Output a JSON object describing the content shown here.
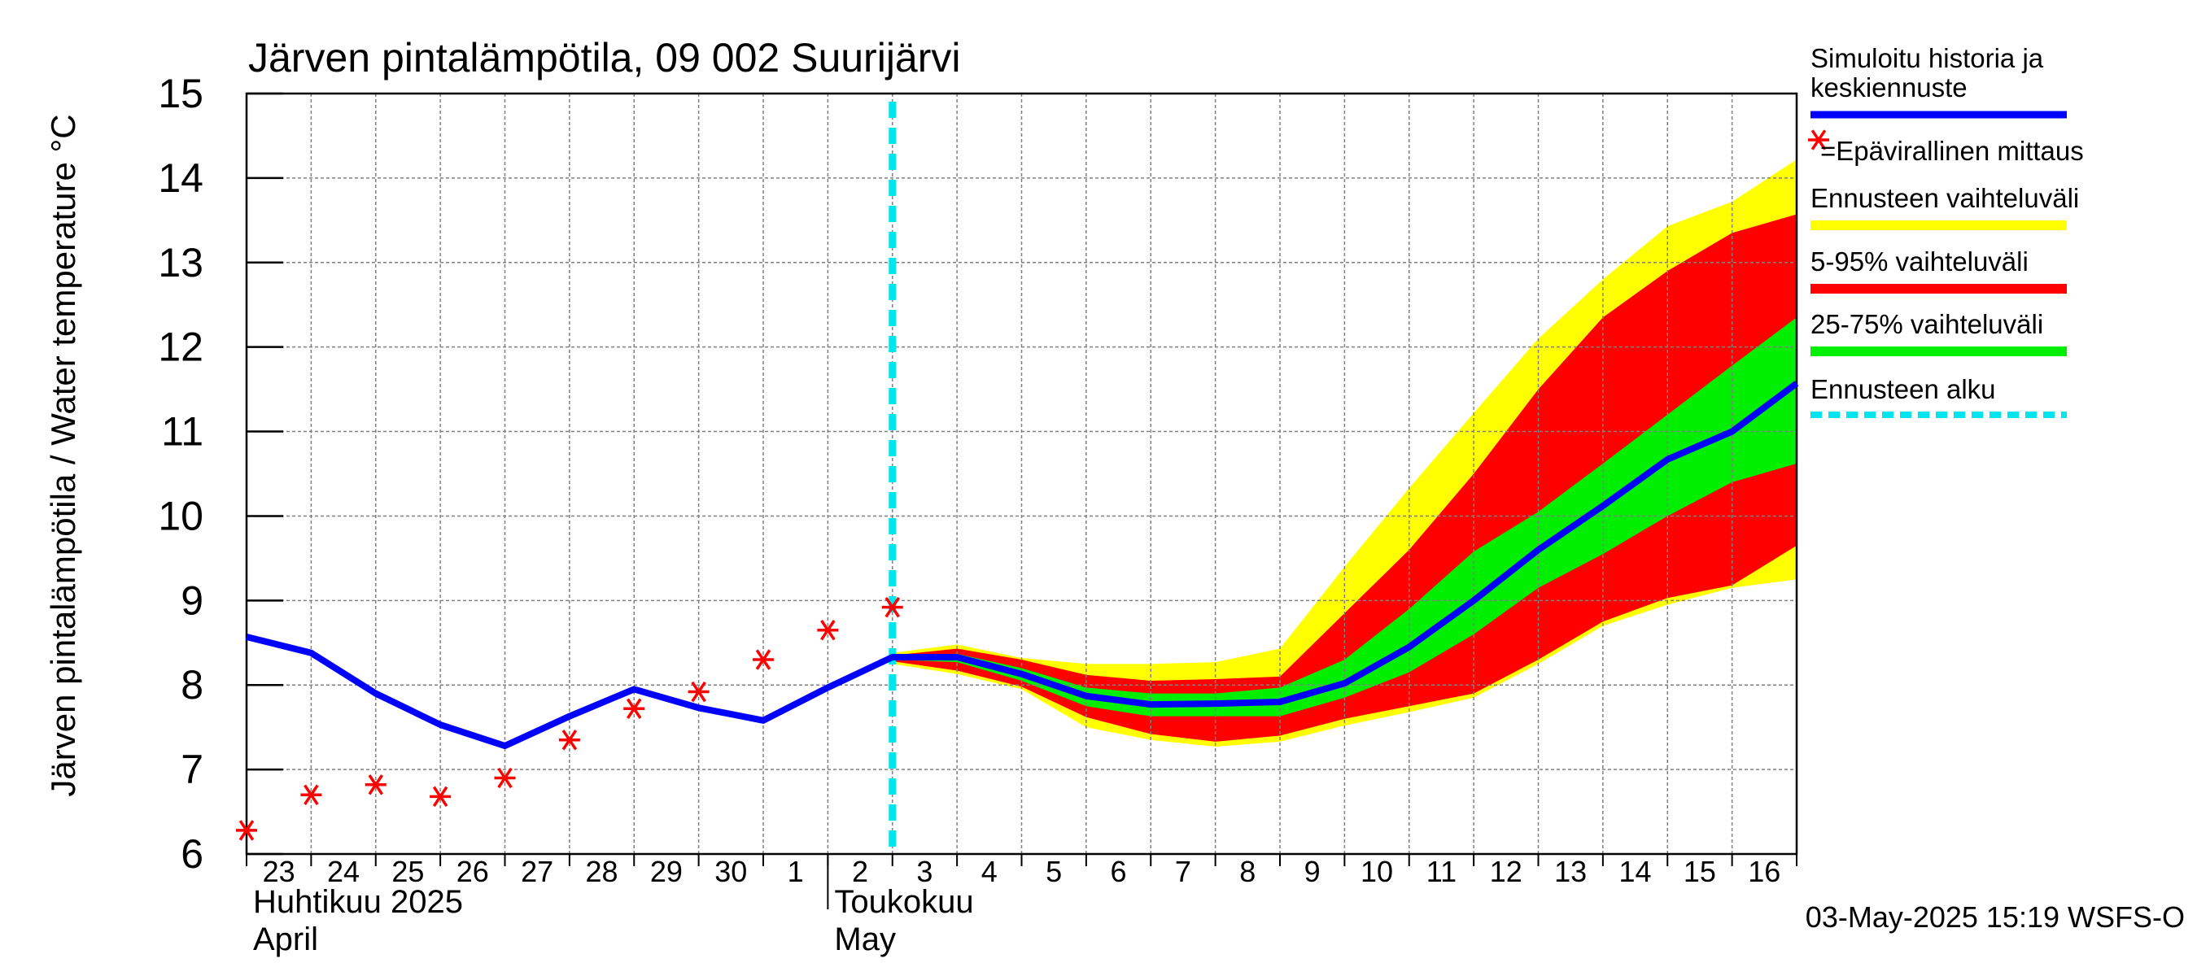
{
  "chart_data": {
    "type": "line",
    "title": "Järven pintalämpötila, 09 002 Suurijärvi",
    "ylabel": "Järven pintalämpötila / Water temperature °C",
    "ylim": [
      6,
      15
    ],
    "yticks": [
      6,
      7,
      8,
      9,
      10,
      11,
      12,
      13,
      14,
      15
    ],
    "xlim": [
      0,
      24
    ],
    "day_labels": [
      "23",
      "24",
      "25",
      "26",
      "27",
      "28",
      "29",
      "30",
      "1",
      "2",
      "3",
      "4",
      "5",
      "6",
      "7",
      "8",
      "9",
      "10",
      "11",
      "12",
      "13",
      "14",
      "15",
      "16"
    ],
    "month_labels": [
      {
        "fi": "Huhtikuu  2025",
        "en": "April",
        "x": 0
      },
      {
        "fi": "Toukokuu",
        "en": "May",
        "x": 9
      }
    ],
    "forecast_start": 10,
    "grid": true,
    "legend_position": "right",
    "colors": {
      "history": "#0000ff",
      "observation": "#ff0000",
      "band_full": "#ffff00",
      "band_5_95": "#ff0000",
      "band_25_75": "#00ee00",
      "forecast_start": "#00e5ee",
      "grid": "#808080"
    },
    "legend": [
      {
        "label": "Simuloitu historia ja\nkeskiennuste",
        "kind": "line",
        "color": "#0000ff"
      },
      {
        "label": "=Epävirallinen mittaus",
        "kind": "marker",
        "color": "#ff0000"
      },
      {
        "label": "Ennusteen vaihteluväli",
        "kind": "band",
        "color": "#ffff00"
      },
      {
        "label": "5-95% vaihteluväli",
        "kind": "band",
        "color": "#ff0000"
      },
      {
        "label": "25-75% vaihteluväli",
        "kind": "band",
        "color": "#00ee00"
      },
      {
        "label": "Ennusteen alku",
        "kind": "dash",
        "color": "#00e5ee"
      }
    ],
    "series": [
      {
        "name": "Simuloitu historia ja keskiennuste",
        "x": [
          0,
          1,
          2,
          3,
          4,
          5,
          6,
          7,
          8,
          9,
          10,
          11,
          12,
          13,
          14,
          15,
          16,
          17,
          18,
          19,
          20,
          21,
          22,
          23,
          24
        ],
        "y": [
          8.57,
          8.38,
          7.9,
          7.53,
          7.28,
          7.63,
          7.95,
          7.73,
          7.58,
          7.97,
          8.33,
          8.33,
          8.13,
          7.87,
          7.77,
          7.78,
          7.8,
          8.02,
          8.45,
          9.0,
          9.6,
          10.12,
          10.67,
          11.0,
          11.57
        ]
      },
      {
        "name": "Epävirallinen mittaus",
        "x": [
          0,
          1,
          2,
          3,
          4,
          5,
          6,
          7,
          8,
          9,
          10
        ],
        "y": [
          6.28,
          6.7,
          6.82,
          6.68,
          6.9,
          7.35,
          7.72,
          7.92,
          8.3,
          8.65,
          8.92
        ]
      }
    ],
    "bands": [
      {
        "name": "Ennusteen vaihteluväli",
        "x": [
          10,
          11,
          12,
          13,
          14,
          15,
          16,
          17,
          18,
          19,
          20,
          21,
          22,
          23,
          24
        ],
        "upper": [
          8.38,
          8.48,
          8.32,
          8.25,
          8.25,
          8.27,
          8.43,
          9.4,
          10.33,
          11.22,
          12.1,
          12.8,
          13.43,
          13.72,
          14.22
        ],
        "lower": [
          8.25,
          8.13,
          7.95,
          7.5,
          7.35,
          7.27,
          7.33,
          7.52,
          7.68,
          7.85,
          8.25,
          8.7,
          8.95,
          9.15,
          9.25
        ]
      },
      {
        "name": "5-95% vaihteluväli",
        "x": [
          10,
          11,
          12,
          13,
          14,
          15,
          16,
          17,
          18,
          19,
          20,
          21,
          22,
          23,
          24
        ],
        "upper": [
          8.35,
          8.43,
          8.3,
          8.12,
          8.05,
          8.07,
          8.1,
          8.85,
          9.6,
          10.5,
          11.5,
          12.35,
          12.9,
          13.35,
          13.57
        ],
        "lower": [
          8.28,
          8.17,
          7.98,
          7.62,
          7.42,
          7.33,
          7.4,
          7.6,
          7.75,
          7.9,
          8.3,
          8.75,
          9.03,
          9.18,
          9.65
        ]
      },
      {
        "name": "25-75% vaihteluväli",
        "x": [
          10,
          11,
          12,
          13,
          14,
          15,
          16,
          17,
          18,
          19,
          20,
          21,
          22,
          23,
          24
        ],
        "upper": [
          8.35,
          8.37,
          8.2,
          7.97,
          7.9,
          7.9,
          7.97,
          8.3,
          8.9,
          9.58,
          10.05,
          10.62,
          11.2,
          11.78,
          12.35
        ],
        "lower": [
          8.3,
          8.27,
          8.05,
          7.75,
          7.63,
          7.63,
          7.63,
          7.85,
          8.15,
          8.6,
          9.15,
          9.55,
          10.0,
          10.4,
          10.62
        ]
      }
    ],
    "timestamp": "03-May-2025 15:19 WSFS-O"
  }
}
